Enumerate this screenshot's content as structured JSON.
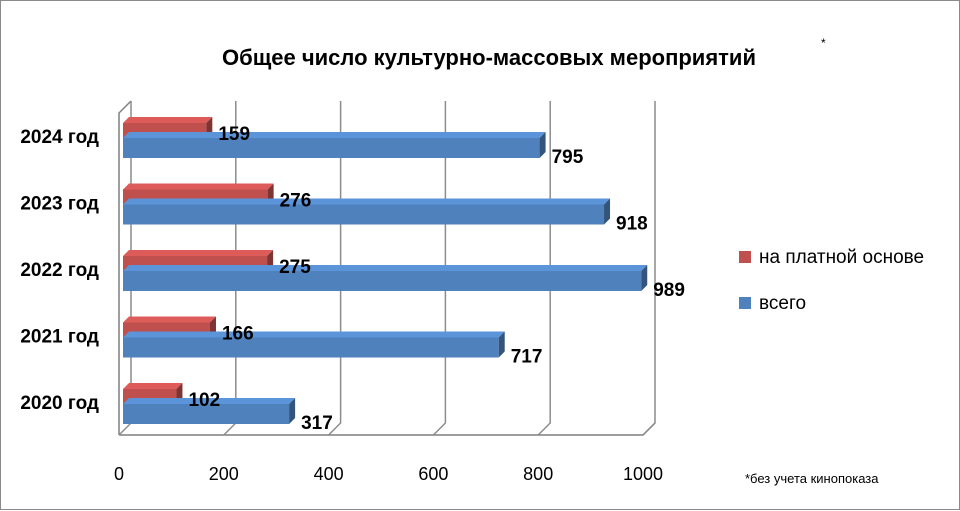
{
  "chart_data": {
    "type": "bar",
    "orientation": "horizontal",
    "title": "Общее число культурно-массовых мероприятий",
    "title_marker": "*",
    "categories": [
      "2020 год",
      "2021 год",
      "2022 год",
      "2023 год",
      "2024 год"
    ],
    "series": [
      {
        "name": "на платной основе",
        "color": "#c0504d",
        "values": [
          102,
          166,
          275,
          276,
          159
        ]
      },
      {
        "name": "всего",
        "color": "#4f81bd",
        "values": [
          317,
          717,
          989,
          918,
          795
        ]
      }
    ],
    "xlim": [
      0,
      1000
    ],
    "xticks": [
      0,
      200,
      400,
      600,
      800,
      1000
    ],
    "grid": true,
    "legend_position": "right",
    "footnote": "*без учета кинопоказа"
  }
}
